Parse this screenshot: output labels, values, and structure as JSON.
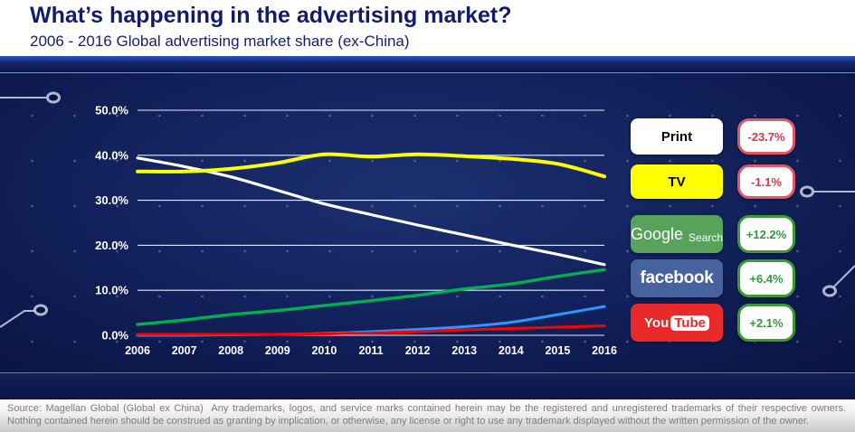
{
  "header": {
    "title": "What’s happening in the advertising market?",
    "subtitle": "2006 - 2016 Global advertising market share (ex-China)"
  },
  "chart_data": {
    "type": "line",
    "title": "2006 - 2016 Global advertising market share (ex-China)",
    "x": [
      2006,
      2007,
      2008,
      2009,
      2010,
      2011,
      2012,
      2013,
      2014,
      2015,
      2016
    ],
    "series": [
      {
        "name": "Print",
        "color": "#ffffff",
        "stroke_width": 3.2,
        "values": [
          39.4,
          37.5,
          35.2,
          32.2,
          29.2,
          26.8,
          24.5,
          22.3,
          20.1,
          18.0,
          15.7
        ],
        "change": "-23.7%"
      },
      {
        "name": "TV",
        "color": "#ffff00",
        "stroke_width": 4.0,
        "values": [
          36.4,
          36.4,
          37.0,
          38.3,
          40.2,
          39.7,
          40.2,
          39.8,
          39.2,
          38.1,
          35.3
        ],
        "change": "-1.1%"
      },
      {
        "name": "Google Search",
        "color": "#00b050",
        "stroke_width": 3.4,
        "values": [
          2.4,
          3.4,
          4.6,
          5.5,
          6.6,
          7.7,
          8.9,
          10.3,
          11.4,
          13.1,
          14.6
        ],
        "change": "+12.2%"
      },
      {
        "name": "Facebook",
        "color": "#2e97ff",
        "stroke_width": 3.0,
        "values": [
          0.0,
          0.0,
          0.1,
          0.2,
          0.4,
          0.8,
          1.3,
          1.9,
          2.9,
          4.6,
          6.4
        ],
        "change": "+6.4%"
      },
      {
        "name": "YouTube",
        "color": "#ff0000",
        "stroke_width": 3.0,
        "values": [
          0.2,
          0.2,
          0.2,
          0.2,
          0.3,
          0.5,
          0.8,
          1.2,
          1.5,
          1.8,
          2.1
        ],
        "change": "+2.1%"
      }
    ],
    "ylim": [
      0,
      50
    ],
    "yticks": [
      0,
      10,
      20,
      30,
      40,
      50
    ],
    "ytick_labels": [
      "0.0%",
      "10.0%",
      "20.0%",
      "30.0%",
      "40.0%",
      "50.0%"
    ],
    "grid": true,
    "legend_position": "right"
  },
  "legend": {
    "items": [
      {
        "label": "Print",
        "badge": "-23.7%",
        "trend": "negative"
      },
      {
        "label": "TV",
        "badge": "-1.1%",
        "trend": "negative"
      },
      {
        "logo_main": "Google",
        "logo_sub": "Search",
        "badge": "+12.2%",
        "trend": "positive"
      },
      {
        "label": "facebook",
        "badge": "+6.4%",
        "trend": "positive"
      },
      {
        "logo_main": "You",
        "logo_sub": "Tube",
        "badge": "+2.1%",
        "trend": "positive"
      }
    ]
  },
  "colors": {
    "title_text": "#131c6b",
    "print_box_bg": "#ffffff",
    "tv_box_bg": "#ffff00",
    "google_box_bg": "#57a35c",
    "facebook_box_bg": "#47639f",
    "youtube_box_bg": "#e82a2a",
    "negative_badge_text": "#e0344c",
    "negative_badge_border": "#e25764",
    "positive_badge_text": "#2f9c3f",
    "positive_badge_border": "#3a9b35"
  },
  "footer": {
    "source_text": "Source: Magellan Global (Global ex China)  Any trademarks, logos, and service marks contained herein may be the registered and unregistered trademarks of their respective owners. Nothing contained herein should be construed as granting by implication, or otherwise, any license or right to use any trademark displayed without the written permission of the owner."
  }
}
